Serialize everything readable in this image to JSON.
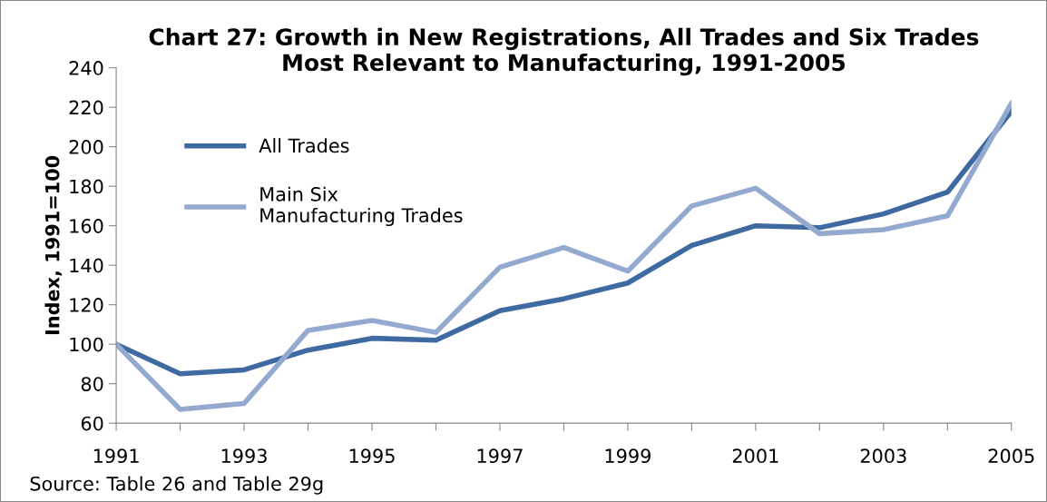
{
  "chart_data": {
    "type": "line",
    "title": "Chart 27: Growth in New Registrations, All Trades and Six Trades\nMost Relevant to Manufacturing, 1991-2005",
    "ylabel": "Index, 1991=100",
    "x": [
      1991,
      1992,
      1993,
      1994,
      1995,
      1996,
      1997,
      1998,
      1999,
      2000,
      2001,
      2002,
      2003,
      2004,
      2005
    ],
    "series": [
      {
        "name": "All Trades",
        "color": "#3e6aa1",
        "values": [
          100,
          85,
          87,
          97,
          103,
          102,
          117,
          123,
          131,
          150,
          160,
          159,
          166,
          177,
          218
        ]
      },
      {
        "name": "Main Six\nManufacturing Trades",
        "color": "#94a9cf",
        "values": [
          100,
          67,
          70,
          107,
          112,
          106,
          139,
          149,
          137,
          170,
          179,
          156,
          158,
          165,
          222
        ]
      }
    ],
    "xlim": [
      1991,
      2005
    ],
    "xticks": [
      1991,
      {
        "value": 1992,
        "label": null
      },
      1993,
      {
        "value": 1994,
        "label": null
      },
      1995,
      {
        "value": 1996,
        "label": null
      },
      1997,
      {
        "value": 1998,
        "label": null
      },
      1999,
      {
        "value": 2000,
        "label": null
      },
      2001,
      {
        "value": 2002,
        "label": null
      },
      2003,
      {
        "value": 2004,
        "label": null
      },
      2005
    ],
    "ylim": [
      60,
      240
    ],
    "yticks": [
      60,
      80,
      100,
      120,
      140,
      160,
      180,
      200,
      220,
      240
    ],
    "grid": false,
    "legend": "top left",
    "marker": "none",
    "line_style": "solid",
    "annotations": [
      "Source: Table 26 and Table 29g"
    ]
  }
}
